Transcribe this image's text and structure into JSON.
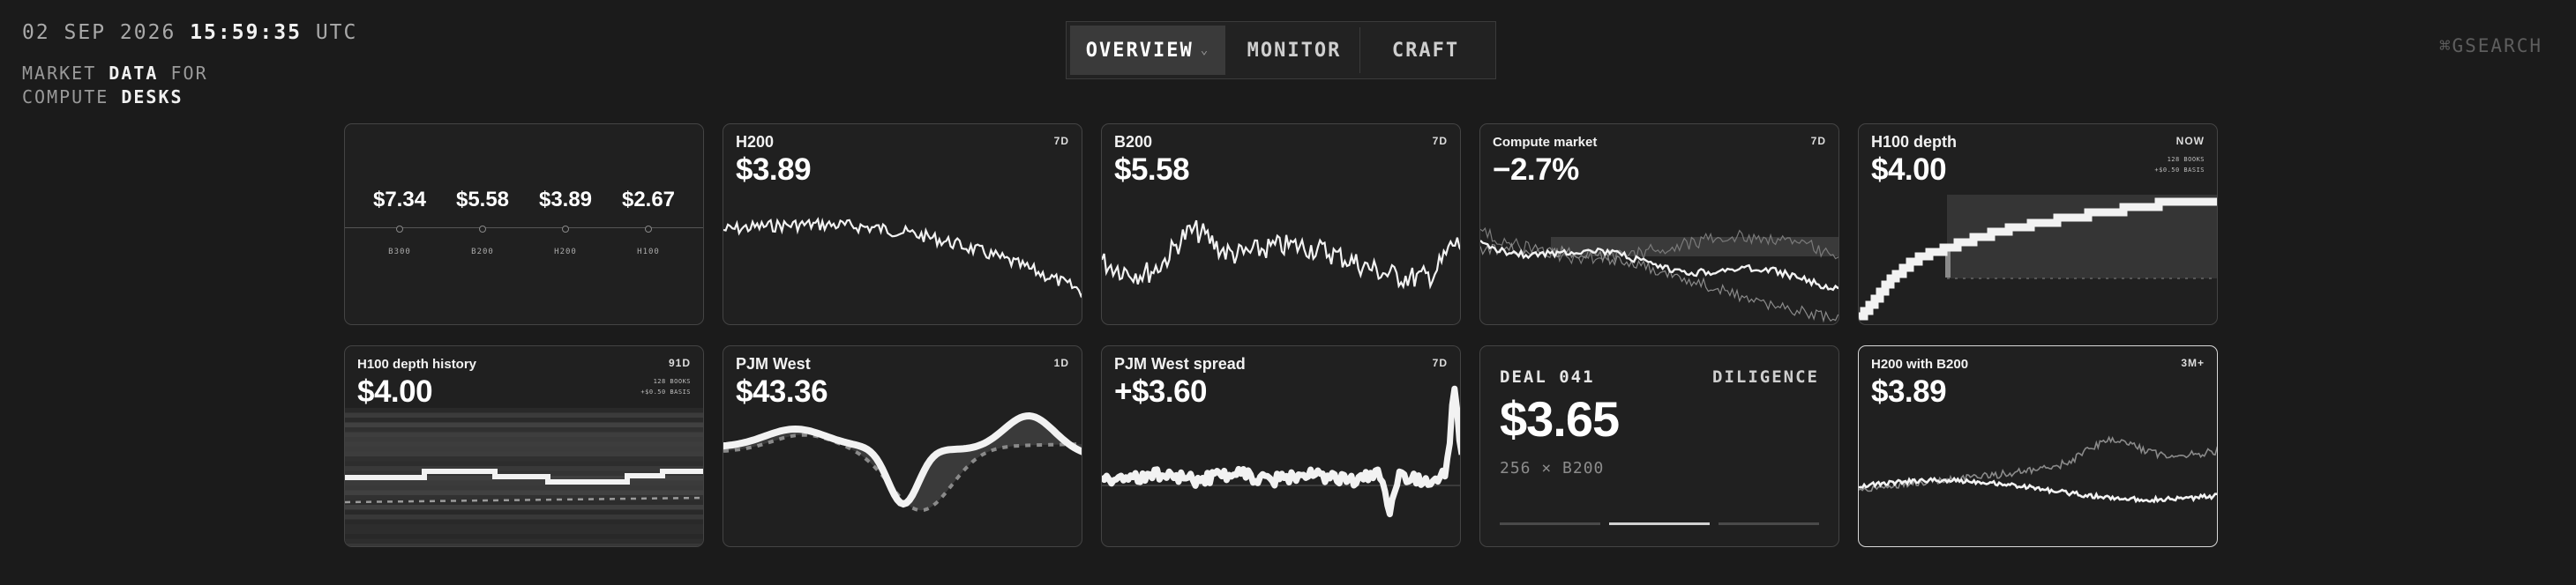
{
  "header": {
    "date": "02 SEP 2026",
    "time": "15:59:35",
    "tz": "UTC",
    "tagline": [
      {
        "normal": "MARKET",
        "bold": "DATA",
        "tail": "FOR"
      },
      {
        "normal": "COMPUTE",
        "bold": "DESKS",
        "tail": ""
      }
    ]
  },
  "nav": {
    "tabs": [
      {
        "label": "OVERVIEW",
        "active": true,
        "has_dropdown": true
      },
      {
        "label": "MONITOR",
        "active": false
      },
      {
        "label": "CRAFT",
        "active": false
      }
    ]
  },
  "search": {
    "shortcut": "⌘G",
    "label": "SEARCH"
  },
  "summary": {
    "items": [
      {
        "price": "$7.34",
        "label": "B300"
      },
      {
        "price": "$5.58",
        "label": "B200"
      },
      {
        "price": "$3.89",
        "label": "H200"
      },
      {
        "price": "$2.67",
        "label": "H100"
      }
    ]
  },
  "cards": {
    "h200": {
      "title": "H200",
      "price": "$3.89",
      "tag": "7D"
    },
    "b200": {
      "title": "B200",
      "price": "$5.58",
      "tag": "7D"
    },
    "compute": {
      "title": "Compute market",
      "price": "−2.7%",
      "tag": "7D"
    },
    "h100depth": {
      "title": "H100 depth",
      "price": "$4.00",
      "tag": "NOW",
      "sub1": "128 BOOKS",
      "sub2": "+$0.50 BASIS"
    },
    "h100hist": {
      "title": "H100 depth history",
      "price": "$4.00",
      "tag": "91D",
      "sub1": "128 BOOKS",
      "sub2": "+$0.50 BASIS"
    },
    "pjm": {
      "title": "PJM West",
      "price": "$43.36",
      "tag": "1D"
    },
    "pjmspread": {
      "title": "PJM West spread",
      "price": "+$3.60",
      "tag": "7D"
    },
    "deal": {
      "id": "DEAL 041",
      "status": "DILIGENCE",
      "price": "$3.65",
      "qty": "256 × B200"
    },
    "h200b200": {
      "title": "H200 with B200",
      "price": "$3.89",
      "tag": "3M+"
    }
  },
  "colors": {
    "bg": "#1b1b1b",
    "card": "#202020",
    "line": "#f2f2f2",
    "muted": "#777777"
  }
}
